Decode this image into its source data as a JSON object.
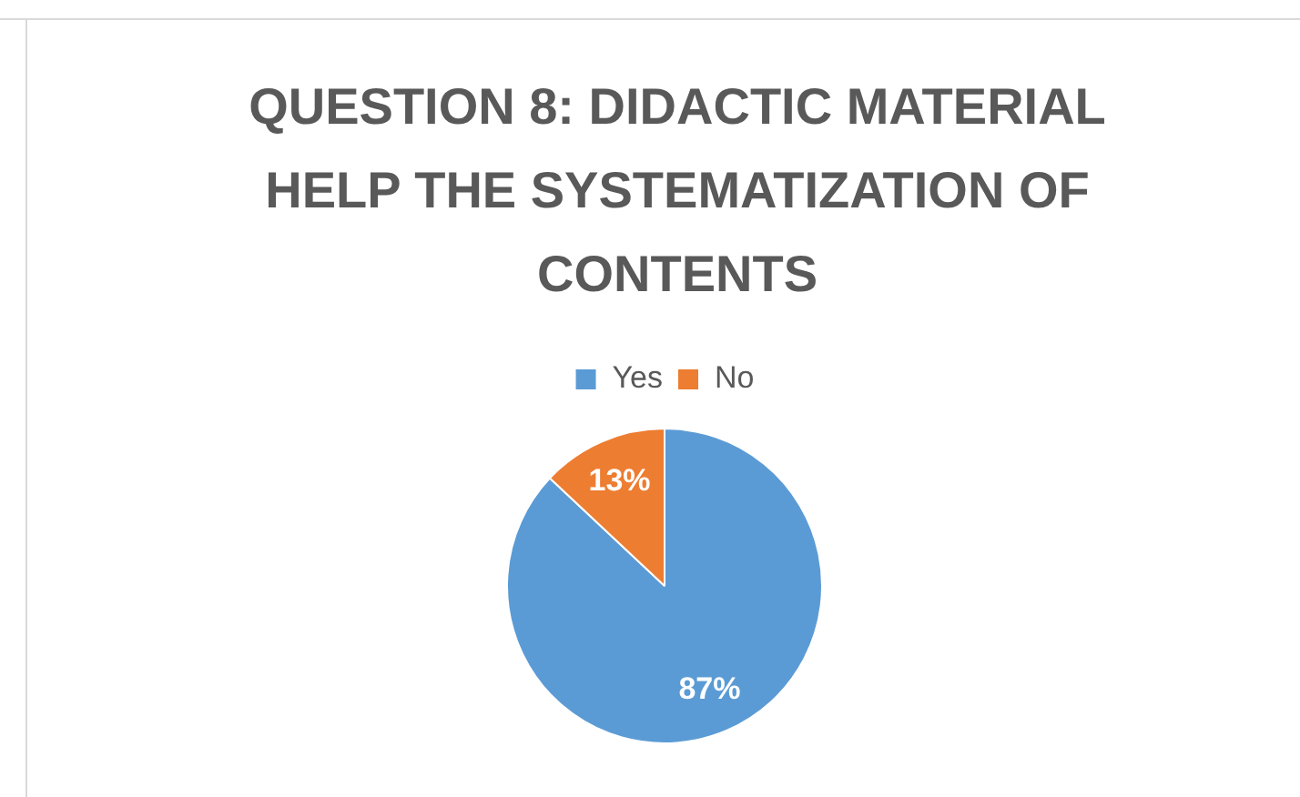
{
  "chart_data": {
    "type": "pie",
    "title": "QUESTION 8: DIDACTIC MATERIAL HELP THE SYSTEMATIZATION OF CONTENTS",
    "categories": [
      "Yes",
      "No"
    ],
    "values": [
      87,
      13
    ],
    "colors": [
      "#5b9bd5",
      "#ed7d31"
    ],
    "value_labels": [
      "87%",
      "13%"
    ],
    "legend": "top"
  }
}
